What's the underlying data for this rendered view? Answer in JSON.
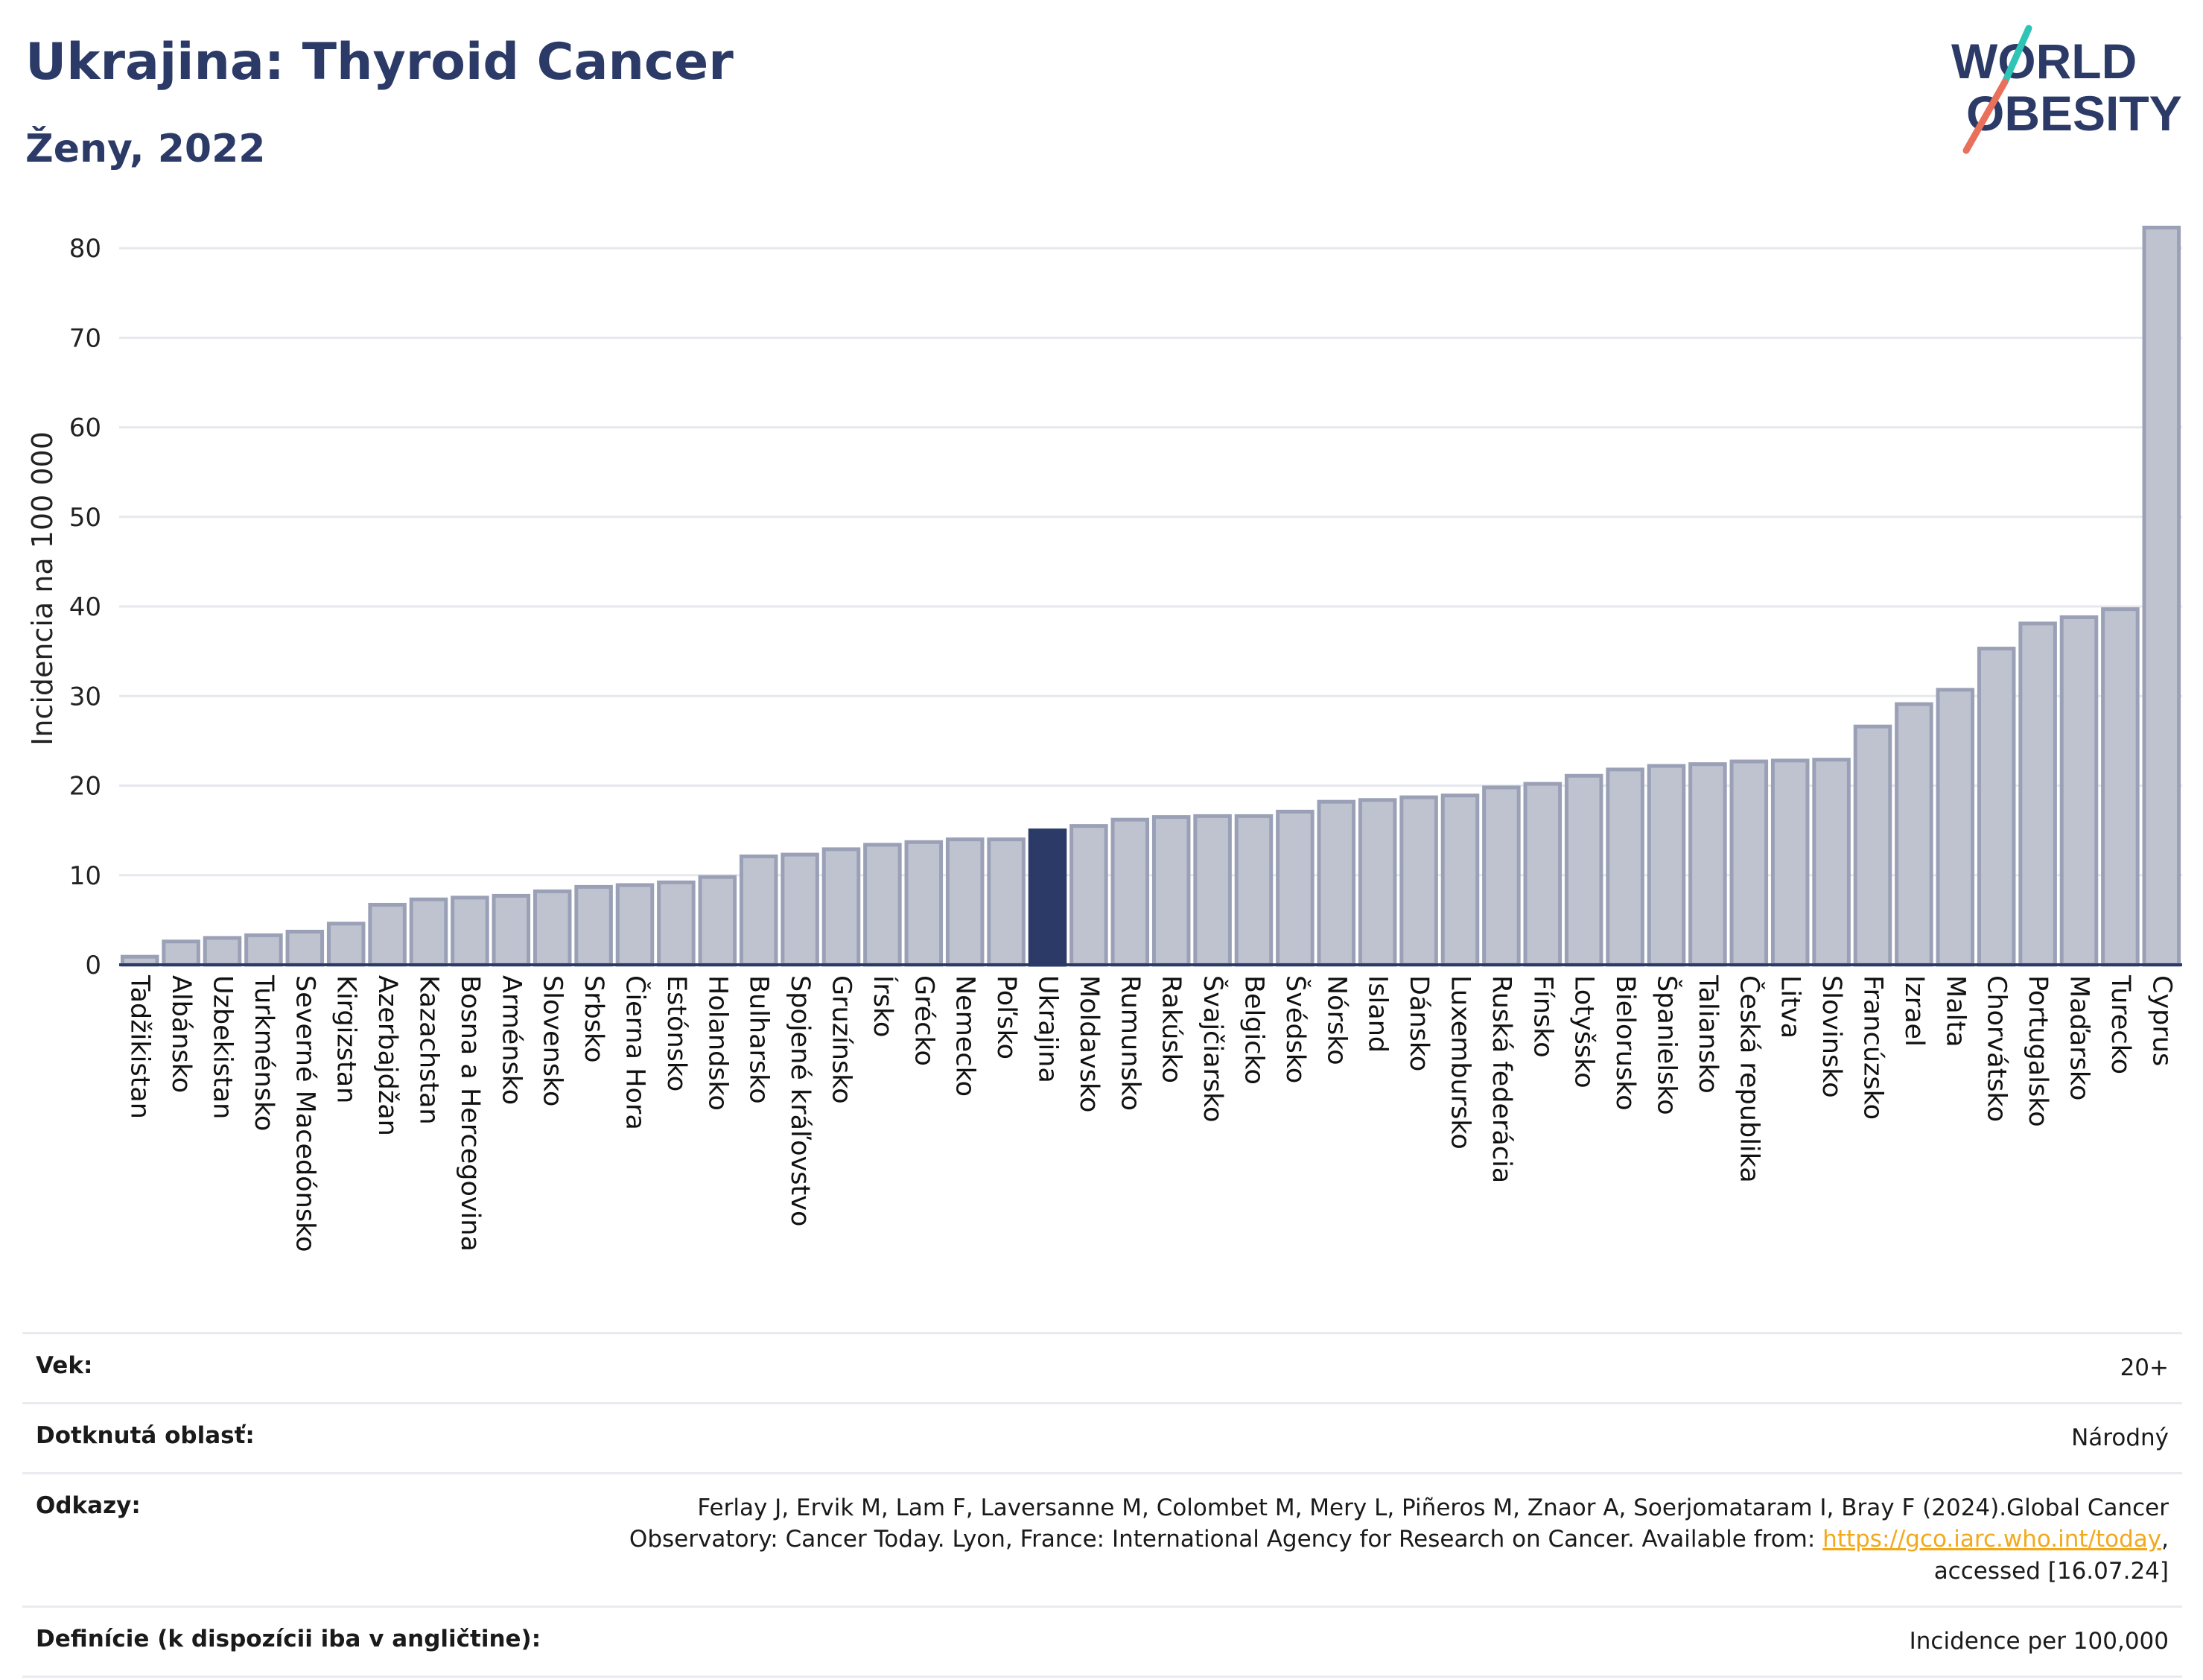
{
  "header": {
    "title": "Ukrajina: Thyroid Cancer",
    "subtitle": "Ženy, 2022"
  },
  "logo": {
    "line1": "WORLD",
    "line2": "OBESITY",
    "accent_teal": "#2ec4b6",
    "accent_coral": "#e9705a",
    "text_color": "#2b3a67"
  },
  "colors": {
    "bar_fill": "#bfc3d0",
    "bar_stroke": "#9aa0b6",
    "highlight_fill": "#2b3a67",
    "grid": "#e6e8ee"
  },
  "chart_data": {
    "type": "bar",
    "ylabel": "Incidencia na 100 000",
    "ylim": [
      0,
      84
    ],
    "yticks": [
      0,
      10,
      20,
      30,
      40,
      50,
      60,
      70,
      80
    ],
    "grid": true,
    "highlight": "Ukrajina",
    "categories": [
      "Tadžikistan",
      "Albánsko",
      "Uzbekistan",
      "Turkménsko",
      "Severné Macedónsko",
      "Kirgizstan",
      "Azerbajdžan",
      "Kazachstan",
      "Bosna a Hercegovina",
      "Arménsko",
      "Slovensko",
      "Srbsko",
      "Čierna Hora",
      "Estónsko",
      "Holandsko",
      "Bulharsko",
      "Spojené kráľovstvo",
      "Gruzínsko",
      "Írsko",
      "Grécko",
      "Nemecko",
      "Poľsko",
      "Ukrajina",
      "Moldavsko",
      "Rumunsko",
      "Rakúsko",
      "Švajčiarsko",
      "Belgicko",
      "Švédsko",
      "Nórsko",
      "Island",
      "Dánsko",
      "Luxembursko",
      "Ruská federácia",
      "Fínsko",
      "Lotyšsko",
      "Bielorusko",
      "Španielsko",
      "Taliansko",
      "Česká republika",
      "Litva",
      "Slovinsko",
      "Francúzsko",
      "Izrael",
      "Malta",
      "Chorvátsko",
      "Portugalsko",
      "Maďarsko",
      "Turecko",
      "Cyprus"
    ],
    "values": [
      0.9,
      2.6,
      3.0,
      3.3,
      3.7,
      4.6,
      6.7,
      7.3,
      7.5,
      7.7,
      8.2,
      8.7,
      8.9,
      9.2,
      9.8,
      12.1,
      12.3,
      12.9,
      13.4,
      13.7,
      14.0,
      14.0,
      15.0,
      15.5,
      16.2,
      16.5,
      16.6,
      16.6,
      17.1,
      18.2,
      18.4,
      18.7,
      18.9,
      19.8,
      20.2,
      21.1,
      21.8,
      22.2,
      22.4,
      22.7,
      22.8,
      22.9,
      26.6,
      29.1,
      30.7,
      35.3,
      38.1,
      38.8,
      39.7,
      82.3
    ]
  },
  "info": {
    "age_label": "Vek:",
    "age_value": "20+",
    "area_label": "Dotknutá oblasť:",
    "area_value": "Národný",
    "refs_label": "Odkazy:",
    "refs_text_1": "Ferlay J, Ervik M, Lam F, Laversanne M, Colombet M, Mery L, Piñeros M, Znaor A, Soerjomataram I, Bray F (2024).Global Cancer Observatory: Cancer Today. Lyon, France: International Agency for Research on Cancer. Available from: ",
    "refs_link": "https://gco.iarc.who.int/today",
    "refs_text_2": ", accessed [16.07.24]",
    "def_label": "Definície (k dispozícii iba v angličtine):",
    "def_value": "Incidence per 100,000"
  }
}
